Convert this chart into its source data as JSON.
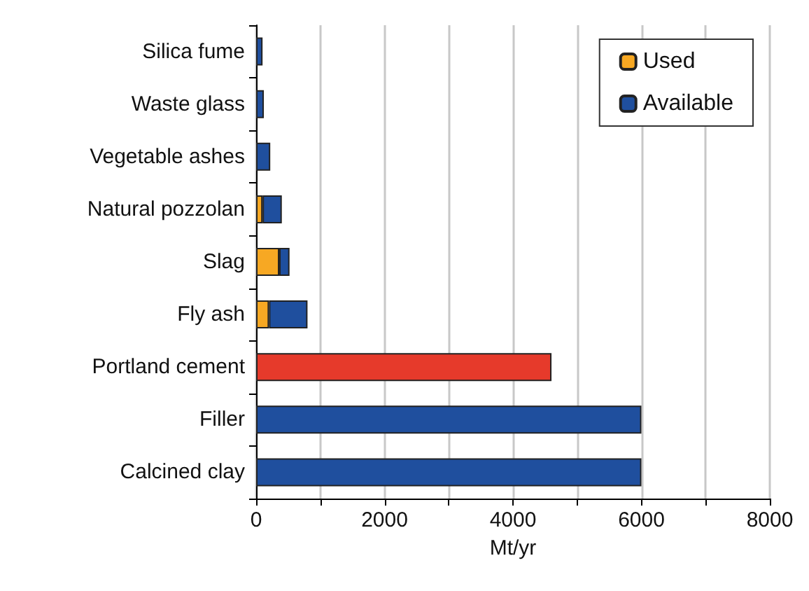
{
  "chart_data": {
    "type": "bar",
    "orientation": "horizontal",
    "stacked": true,
    "xlabel": "Mt/yr",
    "categories": [
      "Silica fume",
      "Waste glass",
      "Vegetable ashes",
      "Natural pozzolan",
      "Slag",
      "Fly ash",
      "Portland cement",
      "Filler",
      "Calcined clay"
    ],
    "series": [
      {
        "name": "Used",
        "color": "#f7a823",
        "values": [
          null,
          null,
          null,
          100,
          360,
          200,
          null,
          null,
          null
        ]
      },
      {
        "name": "Available",
        "color": "#1f4f9e",
        "values": [
          100,
          120,
          220,
          300,
          160,
          600,
          null,
          6000,
          6000
        ]
      },
      {
        "color": "#e63a2b",
        "values": [
          null,
          null,
          null,
          null,
          null,
          null,
          4600,
          null,
          null
        ]
      }
    ],
    "xlim": [
      0,
      8000
    ],
    "xticks": [
      0,
      {
        "value": 1000,
        "label": null
      },
      2000,
      {
        "value": 3000,
        "label": null
      },
      4000,
      {
        "value": 5000,
        "label": null
      },
      6000,
      {
        "value": 7000,
        "label": null
      },
      8000
    ],
    "grid": "x",
    "legend": "top right"
  }
}
